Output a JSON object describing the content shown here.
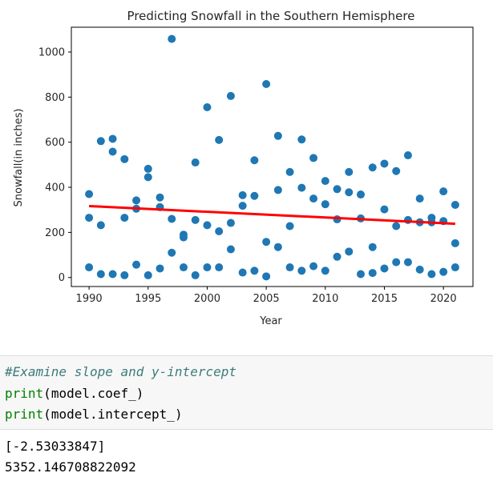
{
  "chart_data": {
    "type": "scatter",
    "title": "Predicting Snowfall in the Southern Hemisphere",
    "xlabel": "Year",
    "ylabel": "Snowfall(in inches)",
    "xlim": [
      1988.5,
      2022.5
    ],
    "ylim": [
      -40,
      1110
    ],
    "xticks": [
      1990,
      1995,
      2000,
      2005,
      2010,
      2015,
      2020
    ],
    "yticks": [
      0,
      200,
      400,
      600,
      800,
      1000
    ],
    "point_color": "#1f77b4",
    "line_color": "#ff0000",
    "points": [
      [
        1990,
        370
      ],
      [
        1990,
        265
      ],
      [
        1990,
        45
      ],
      [
        1991,
        605
      ],
      [
        1991,
        232
      ],
      [
        1991,
        15
      ],
      [
        1992,
        615
      ],
      [
        1992,
        558
      ],
      [
        1992,
        15
      ],
      [
        1993,
        525
      ],
      [
        1993,
        265
      ],
      [
        1993,
        10
      ],
      [
        1994,
        342
      ],
      [
        1994,
        305
      ],
      [
        1994,
        57
      ],
      [
        1995,
        482
      ],
      [
        1995,
        445
      ],
      [
        1995,
        10
      ],
      [
        1996,
        355
      ],
      [
        1996,
        312
      ],
      [
        1996,
        40
      ],
      [
        1997,
        1058
      ],
      [
        1997,
        260
      ],
      [
        1997,
        110
      ],
      [
        1998,
        190
      ],
      [
        1998,
        178
      ],
      [
        1998,
        45
      ],
      [
        1999,
        510
      ],
      [
        1999,
        255
      ],
      [
        1999,
        10
      ],
      [
        2000,
        755
      ],
      [
        2000,
        232
      ],
      [
        2000,
        45
      ],
      [
        2001,
        610
      ],
      [
        2001,
        205
      ],
      [
        2001,
        45
      ],
      [
        2002,
        805
      ],
      [
        2002,
        242
      ],
      [
        2002,
        125
      ],
      [
        2003,
        365
      ],
      [
        2003,
        318
      ],
      [
        2003,
        22
      ],
      [
        2004,
        520
      ],
      [
        2004,
        362
      ],
      [
        2004,
        30
      ],
      [
        2005,
        858
      ],
      [
        2005,
        158
      ],
      [
        2005,
        5
      ],
      [
        2006,
        628
      ],
      [
        2006,
        388
      ],
      [
        2006,
        135
      ],
      [
        2007,
        468
      ],
      [
        2007,
        228
      ],
      [
        2007,
        45
      ],
      [
        2008,
        612
      ],
      [
        2008,
        398
      ],
      [
        2008,
        30
      ],
      [
        2009,
        530
      ],
      [
        2009,
        350
      ],
      [
        2009,
        50
      ],
      [
        2010,
        428
      ],
      [
        2010,
        325
      ],
      [
        2010,
        30
      ],
      [
        2011,
        392
      ],
      [
        2011,
        258
      ],
      [
        2011,
        92
      ],
      [
        2012,
        468
      ],
      [
        2012,
        378
      ],
      [
        2012,
        115
      ],
      [
        2013,
        368
      ],
      [
        2013,
        262
      ],
      [
        2013,
        15
      ],
      [
        2014,
        488
      ],
      [
        2014,
        135
      ],
      [
        2014,
        20
      ],
      [
        2015,
        505
      ],
      [
        2015,
        302
      ],
      [
        2015,
        40
      ],
      [
        2016,
        472
      ],
      [
        2016,
        228
      ],
      [
        2016,
        68
      ],
      [
        2017,
        542
      ],
      [
        2017,
        255
      ],
      [
        2017,
        68
      ],
      [
        2018,
        350
      ],
      [
        2018,
        245
      ],
      [
        2018,
        35
      ],
      [
        2019,
        265
      ],
      [
        2019,
        245
      ],
      [
        2019,
        15
      ],
      [
        2020,
        382
      ],
      [
        2020,
        250
      ],
      [
        2020,
        25
      ],
      [
        2021,
        322
      ],
      [
        2021,
        152
      ],
      [
        2021,
        45
      ]
    ],
    "regression": {
      "slope": -2.53033847,
      "intercept": 5352.146708822092
    },
    "grid": false
  },
  "code_cell": {
    "comment": "#Examine slope and y-intercept",
    "line2_func": "print",
    "line2_arg": "model.coef_",
    "line3_func": "print",
    "line3_arg": "model.intercept_"
  },
  "output": {
    "line1": "[-2.53033847]",
    "line2": "5352.146708822092"
  }
}
